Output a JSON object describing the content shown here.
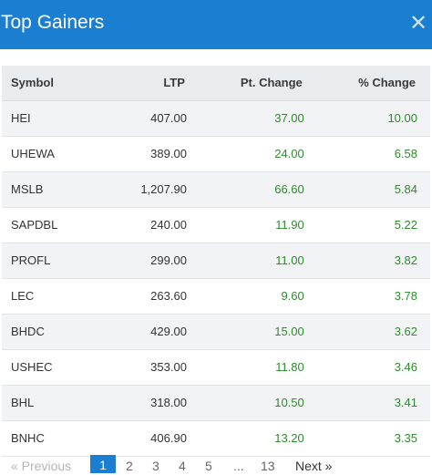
{
  "header": {
    "title": "Top Gainers",
    "close_icon": "close-icon"
  },
  "table": {
    "columns": [
      "Symbol",
      "LTP",
      "Pt. Change",
      "% Change"
    ],
    "rows": [
      {
        "symbol": "HEI",
        "ltp": "407.00",
        "pt": "37.00",
        "pct": "10.00"
      },
      {
        "symbol": "UHEWA",
        "ltp": "389.00",
        "pt": "24.00",
        "pct": "6.58"
      },
      {
        "symbol": "MSLB",
        "ltp": "1,207.90",
        "pt": "66.60",
        "pct": "5.84"
      },
      {
        "symbol": "SAPDBL",
        "ltp": "240.00",
        "pt": "11.90",
        "pct": "5.22"
      },
      {
        "symbol": "PROFL",
        "ltp": "299.00",
        "pt": "11.00",
        "pct": "3.82"
      },
      {
        "symbol": "LEC",
        "ltp": "263.60",
        "pt": "9.60",
        "pct": "3.78"
      },
      {
        "symbol": "BHDC",
        "ltp": "429.00",
        "pt": "15.00",
        "pct": "3.62"
      },
      {
        "symbol": "USHEC",
        "ltp": "353.00",
        "pt": "11.80",
        "pct": "3.46"
      },
      {
        "symbol": "BHL",
        "ltp": "318.00",
        "pt": "10.50",
        "pct": "3.41"
      },
      {
        "symbol": "BNHC",
        "ltp": "406.90",
        "pt": "13.20",
        "pct": "3.35"
      }
    ]
  },
  "pagination": {
    "previous": "« Previous",
    "pages": [
      "1",
      "2",
      "3",
      "4",
      "5"
    ],
    "ellipsis": "...",
    "last": "13",
    "next": "Next »",
    "current": "1"
  },
  "colors": {
    "accent": "#1a7fd1",
    "positive": "#2e8b2e"
  }
}
